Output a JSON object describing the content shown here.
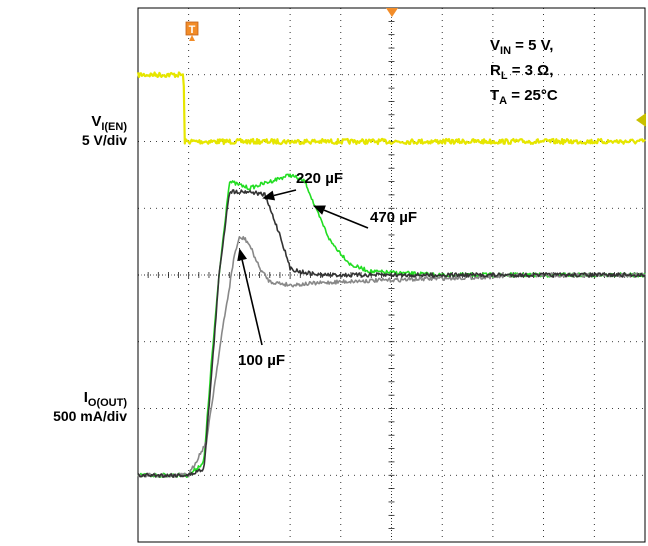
{
  "chart_data": {
    "type": "line",
    "title": "",
    "grid": true,
    "divisions": {
      "x": 10,
      "y": 8
    },
    "conditions": [
      {
        "main": "V",
        "sub": "IN",
        "rest": " = 5 V,"
      },
      {
        "main": "R",
        "sub": "L",
        "rest": " = 3 Ω,"
      },
      {
        "main": "T",
        "sub": "A",
        "rest": " = 25°C"
      }
    ],
    "channels": [
      {
        "main": "V",
        "sub": "I(EN)",
        "scale": "5 V/div",
        "color": "#e6e600"
      },
      {
        "main": "I",
        "sub": "O(OUT)",
        "scale": "500 mA/div",
        "color": "#000000"
      }
    ],
    "trigger_marker": "T",
    "series": [
      {
        "name": "220 µF",
        "color": "#333333",
        "x": [
          0,
          1.0,
          1.3,
          1.45,
          1.5,
          1.6,
          1.8,
          2.2,
          2.5,
          2.6,
          2.8,
          3.0,
          3.2,
          3.6,
          4.0,
          6.0,
          8.0,
          10.0
        ],
        "y": [
          -3.0,
          -3.0,
          -2.9,
          -1.5,
          -1.0,
          0.0,
          1.25,
          1.25,
          1.2,
          1.0,
          0.6,
          0.1,
          0.05,
          0.0,
          0.0,
          0.0,
          0.0,
          0.0
        ]
      },
      {
        "name": "470 µF",
        "color": "#22dd22",
        "x": [
          0,
          1.0,
          1.3,
          1.45,
          1.6,
          1.8,
          2.2,
          2.6,
          3.0,
          3.3,
          3.5,
          3.8,
          4.2,
          4.6,
          6.0,
          8.0,
          10.0
        ],
        "y": [
          -3.0,
          -3.0,
          -2.8,
          -1.3,
          0.0,
          1.4,
          1.3,
          1.4,
          1.5,
          1.4,
          1.0,
          0.5,
          0.15,
          0.05,
          0.0,
          0.0,
          0.0
        ]
      },
      {
        "name": "100 µF",
        "color": "#888888",
        "x": [
          0,
          1.0,
          1.35,
          1.5,
          1.65,
          1.8,
          1.9,
          2.0,
          2.1,
          2.2,
          2.4,
          2.6,
          3.0,
          4.0,
          6.0,
          8.0,
          10.0
        ],
        "y": [
          -3.0,
          -3.0,
          -2.5,
          -1.7,
          -0.9,
          -0.2,
          0.3,
          0.55,
          0.55,
          0.45,
          0.1,
          -0.1,
          -0.15,
          -0.1,
          -0.05,
          0.0,
          0.0
        ]
      },
      {
        "name": "V_I(EN)",
        "color": "#e6e600",
        "x": [
          0,
          0.9,
          0.92,
          10.0
        ],
        "y": [
          3.0,
          3.0,
          2.0,
          2.0
        ]
      }
    ],
    "annotations": [
      {
        "text": "220 µF",
        "target_series": "220 µF"
      },
      {
        "text": "470 µF",
        "target_series": "470 µF"
      },
      {
        "text": "100 µF",
        "target_series": "100 µF"
      }
    ]
  }
}
